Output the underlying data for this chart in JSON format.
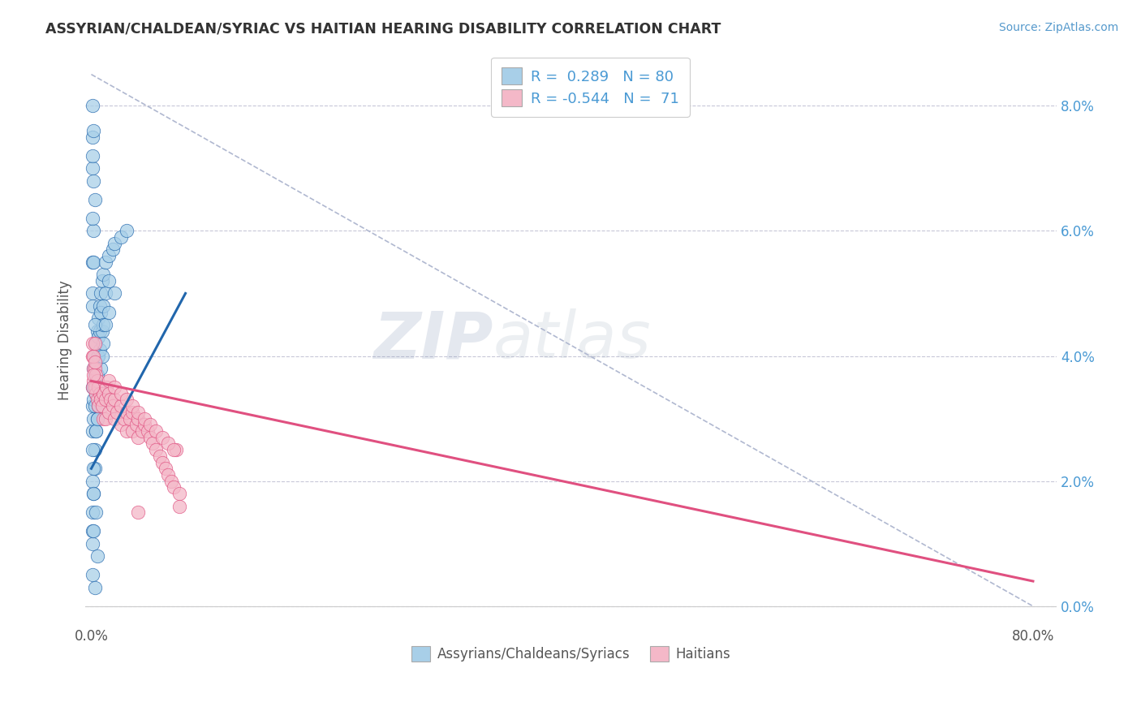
{
  "title": "ASSYRIAN/CHALDEAN/SYRIAC VS HAITIAN HEARING DISABILITY CORRELATION CHART",
  "source": "Source: ZipAtlas.com",
  "ylabel": "Hearing Disability",
  "legend_label1": "Assyrians/Chaldeans/Syriacs",
  "legend_label2": "Haitians",
  "R1": 0.289,
  "N1": 80,
  "R2": -0.544,
  "N2": 71,
  "color1": "#a8cfe8",
  "color2": "#f4b8c8",
  "line_color1": "#2166ac",
  "line_color2": "#e05080",
  "ref_line_color": "#b0b8d0",
  "background_color": "#ffffff",
  "watermark_zip": "ZIP",
  "watermark_atlas": "atlas",
  "blue_scatter_x": [
    0.001,
    0.001,
    0.001,
    0.001,
    0.001,
    0.001,
    0.001,
    0.001,
    0.001,
    0.002,
    0.002,
    0.002,
    0.002,
    0.002,
    0.002,
    0.002,
    0.003,
    0.003,
    0.003,
    0.003,
    0.003,
    0.003,
    0.004,
    0.004,
    0.004,
    0.004,
    0.004,
    0.005,
    0.005,
    0.005,
    0.005,
    0.006,
    0.006,
    0.006,
    0.007,
    0.007,
    0.007,
    0.008,
    0.008,
    0.009,
    0.009,
    0.01,
    0.01,
    0.01,
    0.012,
    0.012,
    0.015,
    0.015,
    0.018,
    0.02,
    0.025,
    0.03,
    0.001,
    0.001,
    0.002,
    0.002,
    0.001,
    0.001,
    0.001,
    0.003,
    0.003,
    0.004,
    0.005,
    0.005,
    0.006,
    0.007,
    0.008,
    0.009,
    0.01,
    0.012,
    0.015,
    0.02,
    0.001,
    0.002,
    0.001,
    0.001,
    0.002,
    0.002,
    0.003,
    0.004
  ],
  "blue_scatter_y": [
    0.035,
    0.032,
    0.05,
    0.048,
    0.075,
    0.07,
    0.028,
    0.055,
    0.01,
    0.038,
    0.035,
    0.033,
    0.03,
    0.06,
    0.055,
    0.018,
    0.04,
    0.037,
    0.035,
    0.032,
    0.065,
    0.025,
    0.042,
    0.039,
    0.036,
    0.034,
    0.028,
    0.044,
    0.04,
    0.037,
    0.03,
    0.046,
    0.043,
    0.04,
    0.048,
    0.044,
    0.041,
    0.05,
    0.047,
    0.052,
    0.044,
    0.053,
    0.048,
    0.045,
    0.055,
    0.05,
    0.056,
    0.052,
    0.057,
    0.058,
    0.059,
    0.06,
    0.08,
    0.072,
    0.076,
    0.068,
    0.062,
    0.02,
    0.015,
    0.022,
    0.045,
    0.028,
    0.03,
    0.008,
    0.032,
    0.035,
    0.038,
    0.04,
    0.042,
    0.045,
    0.047,
    0.05,
    0.012,
    0.018,
    0.025,
    0.005,
    0.012,
    0.022,
    0.003,
    0.015
  ],
  "pink_scatter_x": [
    0.001,
    0.002,
    0.002,
    0.003,
    0.003,
    0.004,
    0.004,
    0.005,
    0.005,
    0.006,
    0.006,
    0.007,
    0.008,
    0.009,
    0.01,
    0.01,
    0.012,
    0.012,
    0.013,
    0.015,
    0.015,
    0.016,
    0.018,
    0.02,
    0.02,
    0.022,
    0.025,
    0.025,
    0.028,
    0.03,
    0.03,
    0.033,
    0.035,
    0.035,
    0.038,
    0.04,
    0.04,
    0.043,
    0.045,
    0.048,
    0.05,
    0.052,
    0.055,
    0.058,
    0.06,
    0.063,
    0.065,
    0.068,
    0.07,
    0.072,
    0.075,
    0.001,
    0.002,
    0.003,
    0.001,
    0.002,
    0.003,
    0.015,
    0.02,
    0.025,
    0.03,
    0.035,
    0.04,
    0.045,
    0.05,
    0.055,
    0.06,
    0.065,
    0.07,
    0.04,
    0.075
  ],
  "pink_scatter_y": [
    0.04,
    0.038,
    0.036,
    0.038,
    0.035,
    0.037,
    0.034,
    0.036,
    0.033,
    0.035,
    0.032,
    0.034,
    0.033,
    0.032,
    0.034,
    0.03,
    0.033,
    0.03,
    0.035,
    0.034,
    0.031,
    0.033,
    0.032,
    0.033,
    0.03,
    0.031,
    0.032,
    0.029,
    0.03,
    0.031,
    0.028,
    0.03,
    0.031,
    0.028,
    0.029,
    0.03,
    0.027,
    0.028,
    0.029,
    0.028,
    0.027,
    0.026,
    0.025,
    0.024,
    0.023,
    0.022,
    0.021,
    0.02,
    0.019,
    0.025,
    0.018,
    0.042,
    0.04,
    0.042,
    0.035,
    0.037,
    0.039,
    0.036,
    0.035,
    0.034,
    0.033,
    0.032,
    0.031,
    0.03,
    0.029,
    0.028,
    0.027,
    0.026,
    0.025,
    0.015,
    0.016
  ],
  "xlim": [
    0.0,
    0.8
  ],
  "ylim": [
    0.0,
    0.085
  ],
  "ytick_vals": [
    0.0,
    0.02,
    0.04,
    0.06,
    0.08
  ],
  "blue_line_x": [
    0.0,
    0.08
  ],
  "blue_line_y": [
    0.022,
    0.05
  ],
  "pink_line_x": [
    0.0,
    0.8
  ],
  "pink_line_y": [
    0.036,
    0.004
  ],
  "ref_line_x": [
    0.0,
    0.8
  ],
  "ref_line_y": [
    0.085,
    0.0
  ]
}
